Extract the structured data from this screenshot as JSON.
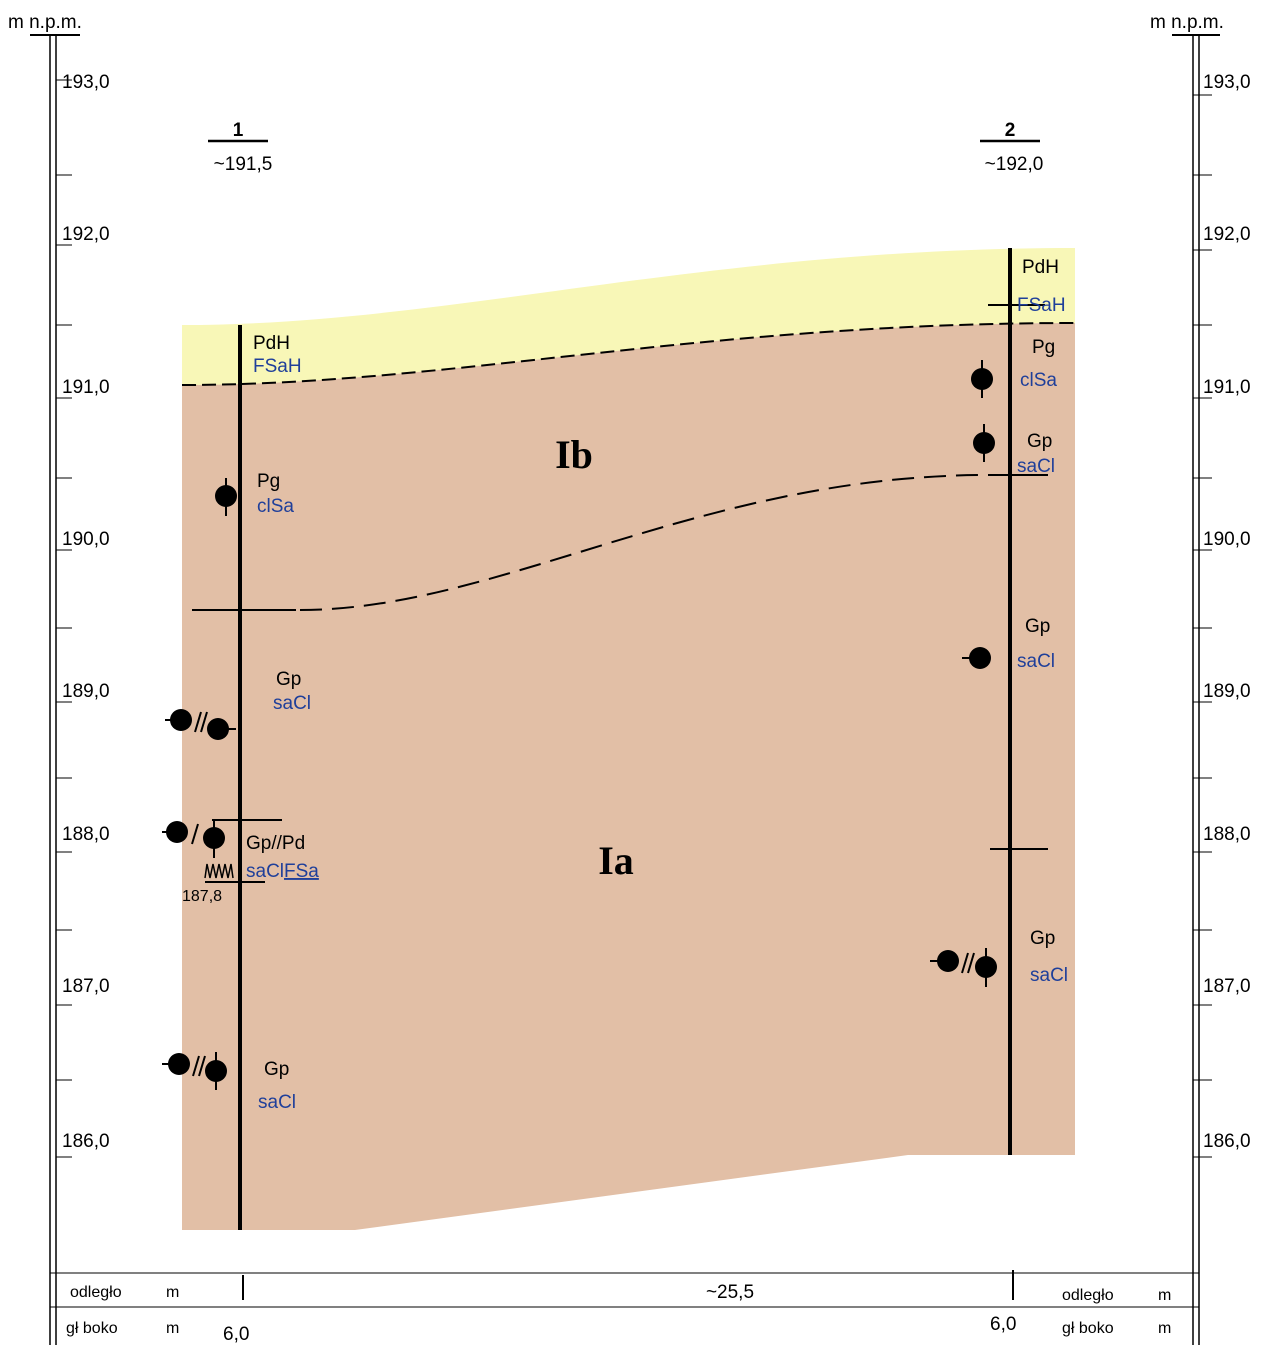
{
  "axis": {
    "unit": "m n.p.m.",
    "labels": [
      "193,0",
      "192,0",
      "191,0",
      "190,0",
      "189,0",
      "188,0",
      "187,0",
      "186,0"
    ]
  },
  "boreholes": [
    {
      "number": "1",
      "elevation": "~191,5",
      "depth": "6,0",
      "water_level": "187,8",
      "layers": [
        {
          "code": "PdH",
          "soil": "FSaH"
        },
        {
          "code": "Pg",
          "soil": "clSa"
        },
        {
          "code": "Gp",
          "soil": "saCl"
        },
        {
          "code": "Gp//Pd",
          "soil": "saCl",
          "soil2": "FSa"
        },
        {
          "code": "Gp",
          "soil": "saCl"
        }
      ]
    },
    {
      "number": "2",
      "elevation": "~192,0",
      "depth": "6,0",
      "layers": [
        {
          "code": "PdH",
          "soil": "FSaH"
        },
        {
          "code": "Pg",
          "soil": "clSa"
        },
        {
          "code": "Gp",
          "soil": "saCl"
        },
        {
          "code": "Gp",
          "soil": "saCl"
        },
        {
          "code": "Gp",
          "soil": "saCl"
        }
      ]
    }
  ],
  "units": [
    "Ib",
    "Ia"
  ],
  "footer": {
    "distance": "odległo",
    "depth": "gł boko",
    "unit": "m",
    "spacing": "~25,5"
  }
}
